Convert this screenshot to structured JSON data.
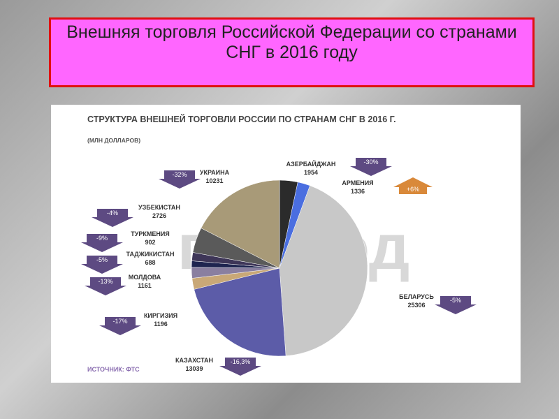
{
  "slide": {
    "title": "Внешняя торговля Российской Федерации со странами СНГ в 2016 году"
  },
  "chart_data": {
    "type": "pie",
    "title": "СТРУКТУРА ВНЕШНЕЙ ТОРГОВЛИ РОССИИ ПО СТРАНАМ СНГ В 2016 Г.",
    "subtitle": "(МЛН ДОЛЛАРОВ)",
    "source": "ИСТОЧНИК: ФТС",
    "watermark": "провэд",
    "categories": [
      "АЗЕРБАЙДЖАН",
      "АРМЕНИЯ",
      "БЕЛАРУСЬ",
      "КАЗАХСТАН",
      "КИРГИЗИЯ",
      "МОЛДОВА",
      "ТАДЖИКИСТАН",
      "ТУРКМЕНИЯ",
      "УЗБЕКИСТАН",
      "УКРАИНА"
    ],
    "values": [
      1954,
      1336,
      25306,
      13039,
      1196,
      1161,
      688,
      902,
      2726,
      10231
    ],
    "colors": [
      "#2b2b2b",
      "#4a6ee0",
      "#c8c8c8",
      "#5c5ca8",
      "#c9a877",
      "#8a7fa0",
      "#1f2550",
      "#3e3658",
      "#5a5a5a",
      "#a89a78"
    ],
    "changes": [
      "-30%",
      "+6%",
      "-5%",
      "-16,3%",
      "-17%",
      "-13%",
      "-5%",
      "-9%",
      "-4%",
      "-32%"
    ]
  }
}
